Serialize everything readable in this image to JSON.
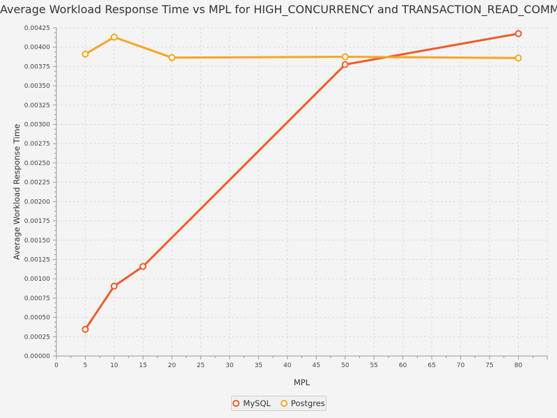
{
  "chart_data": {
    "type": "line",
    "title": "Average Workload Response Time vs MPL for HIGH_CONCURRENCY and TRANSACTION_READ_COMMIT...",
    "xlabel": "MPL",
    "ylabel": "Average Workload Response Time",
    "xlim": [
      0,
      85
    ],
    "ylim": [
      0,
      0.00425
    ],
    "x_ticks": [
      "0",
      "5",
      "10",
      "15",
      "20",
      "25",
      "30",
      "35",
      "40",
      "45",
      "50",
      "55",
      "60",
      "65",
      "70",
      "75",
      "80"
    ],
    "y_ticks": [
      "0.00000",
      "0.00025",
      "0.00050",
      "0.00075",
      "0.00100",
      "0.00125",
      "0.00150",
      "0.00175",
      "0.00200",
      "0.00225",
      "0.00250",
      "0.00275",
      "0.00300",
      "0.00325",
      "0.00350",
      "0.00375",
      "0.00400",
      "0.00425"
    ],
    "grid": true,
    "legend_position": "bottom-center",
    "series": [
      {
        "name": "MySQL",
        "color": "#f05a28",
        "x": [
          5,
          10,
          15,
          50,
          80
        ],
        "y": [
          0.000345,
          0.000905,
          0.00116,
          0.003775,
          0.004175
        ]
      },
      {
        "name": "Postgres",
        "color": "#f5a623",
        "x": [
          5,
          10,
          20,
          50,
          80
        ],
        "y": [
          0.00391,
          0.00413,
          0.003865,
          0.003875,
          0.00386
        ]
      }
    ]
  }
}
